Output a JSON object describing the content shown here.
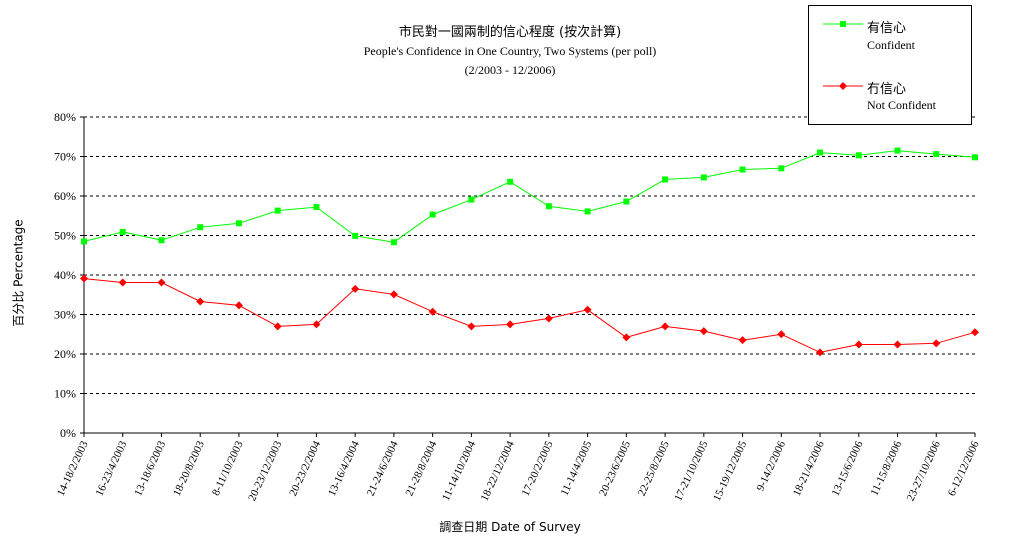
{
  "chart_data": {
    "type": "line",
    "title": "市民對一國兩制的信心程度 (按次計算)",
    "subtitle": "People's Confidence in One Country, Two Systems (per poll)",
    "period": "(2/2003 - 12/2006)",
    "xlabel": "調查日期 Date of Survey",
    "ylabel": "百分比 Percentage",
    "ylim": [
      0,
      80
    ],
    "yticks": [
      0,
      10,
      20,
      30,
      40,
      50,
      60,
      70,
      80
    ],
    "ytick_suffix": "%",
    "grid": "horizontal dashed",
    "legend_position": "top-right",
    "categories": [
      "14-18/2/2003",
      "16-23/4/2003",
      "13-18/6/2003",
      "18-20/8/2003",
      "8-11/10/2003",
      "20-23/12/2003",
      "20-23/2/2004",
      "13-16/4/2004",
      "21-24/6/2004",
      "21-28/8/2004",
      "11-14/10/2004",
      "18-22/12/2004",
      "17-20/2/2005",
      "11-14/4/2005",
      "20-23/6/2005",
      "22-25/8/2005",
      "17-21/10/2005",
      "15-19/12/2005",
      "9-14/2/2006",
      "18-21/4/2006",
      "13-15/6/2006",
      "11-15/8/2006",
      "23-27/10/2006",
      "6-12/12/2006"
    ],
    "series": [
      {
        "name": "有信心",
        "name_en": "Confident",
        "color": "#00ff00",
        "marker": "square",
        "values": [
          48.5,
          50.9,
          48.8,
          52.1,
          53.1,
          56.3,
          57.2,
          49.9,
          48.3,
          55.3,
          59.1,
          63.6,
          57.4,
          56.1,
          58.6,
          64.2,
          64.7,
          66.7,
          67.0,
          71.0,
          70.3,
          71.5,
          70.6,
          69.8
        ]
      },
      {
        "name": "冇信心",
        "name_en": "Not Confident",
        "color": "#ff0000",
        "marker": "diamond",
        "values": [
          39.1,
          38.1,
          38.1,
          33.3,
          32.3,
          27.0,
          27.5,
          36.5,
          35.1,
          30.7,
          27.0,
          27.5,
          29.0,
          31.2,
          24.2,
          27.0,
          25.8,
          23.5,
          25.0,
          20.4,
          22.4,
          22.4,
          22.7,
          25.5
        ]
      }
    ]
  }
}
